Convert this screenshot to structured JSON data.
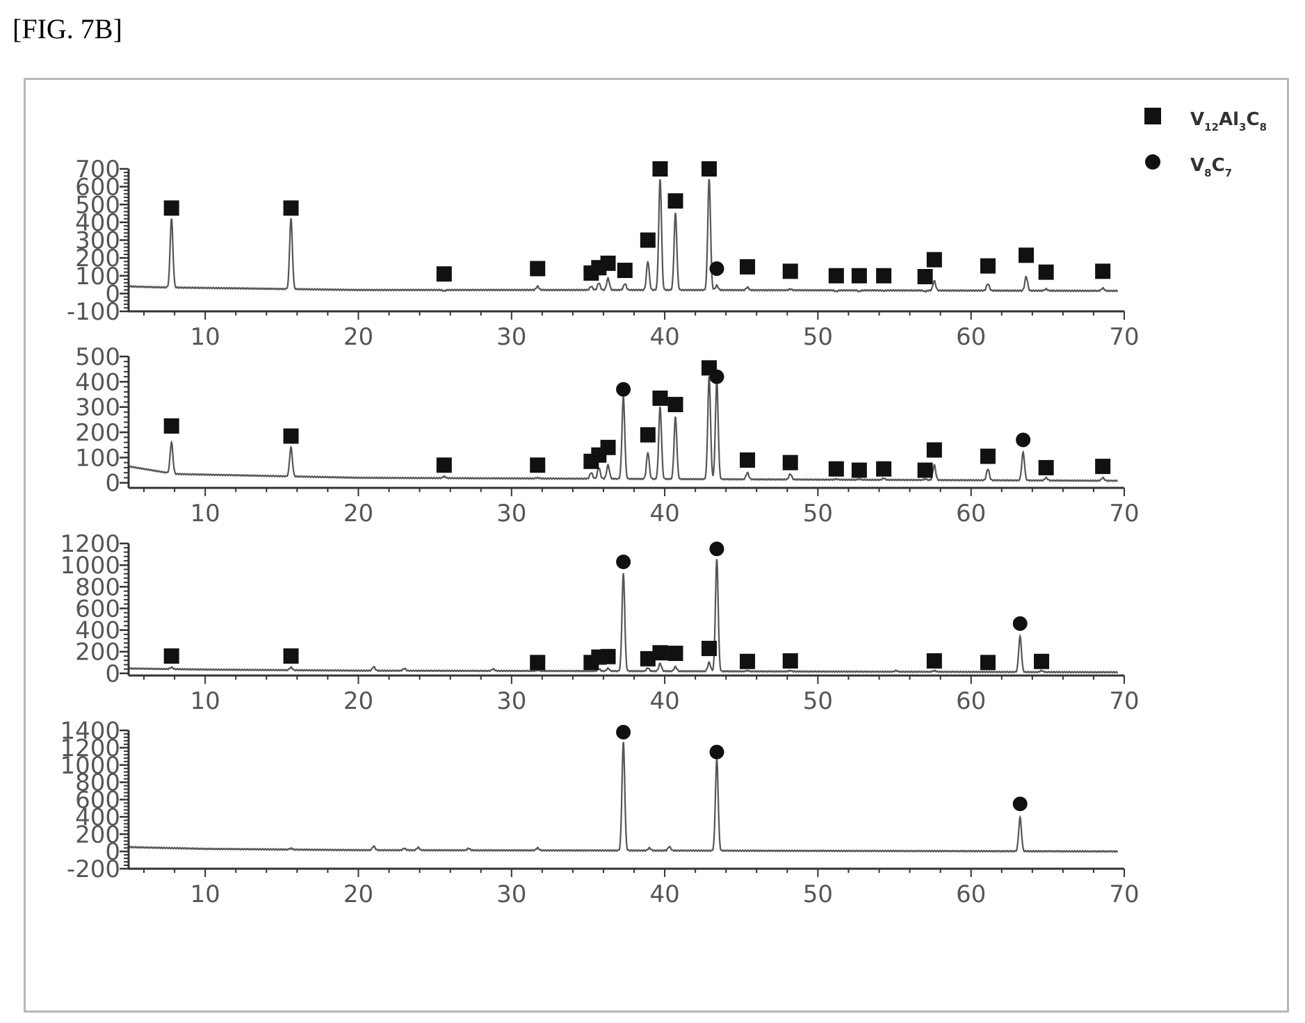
{
  "figure_label": "[FIG. 7B]",
  "colors": {
    "frame": "#b8b8b8",
    "axis": "#333333",
    "trace": "#555555",
    "marker": "#111111"
  },
  "legend": [
    {
      "marker": "square",
      "label": "V",
      "sub1": "12",
      "mid": "Al",
      "sub2": "3",
      "mid2": "C",
      "sub3": "8"
    },
    {
      "marker": "circle",
      "label": "V",
      "sub1": "8",
      "mid": "C",
      "sub2": "7",
      "mid2": "",
      "sub3": ""
    }
  ],
  "chart_data": [
    {
      "type": "line",
      "title": "",
      "xlabel": "",
      "ylabel": "",
      "xlim": [
        5,
        70
      ],
      "ylim": [
        -100,
        700
      ],
      "x_ticks": [
        10,
        20,
        30,
        40,
        50,
        60,
        70
      ],
      "y_ticks": [
        -100,
        0,
        100,
        200,
        300,
        400,
        500,
        600,
        700
      ],
      "y_tick_labels": [
        "-100",
        "0",
        "100",
        "200",
        "300",
        "400",
        "500",
        "600",
        "700"
      ],
      "baseline": [
        [
          5,
          40
        ],
        [
          7,
          35
        ],
        [
          20,
          20
        ],
        [
          40,
          20
        ],
        [
          70,
          15
        ]
      ],
      "peaks": [
        {
          "x": 7.8,
          "y": 420
        },
        {
          "x": 15.6,
          "y": 420
        },
        {
          "x": 25.6,
          "y": 15
        },
        {
          "x": 31.7,
          "y": 40
        },
        {
          "x": 35.2,
          "y": 40
        },
        {
          "x": 35.7,
          "y": 60
        },
        {
          "x": 36.3,
          "y": 85
        },
        {
          "x": 37.4,
          "y": 55
        },
        {
          "x": 38.9,
          "y": 180
        },
        {
          "x": 39.7,
          "y": 640
        },
        {
          "x": 40.7,
          "y": 450
        },
        {
          "x": 42.9,
          "y": 640
        },
        {
          "x": 43.4,
          "y": 45
        },
        {
          "x": 45.4,
          "y": 35
        },
        {
          "x": 48.2,
          "y": 25
        },
        {
          "x": 51.2,
          "y": 12
        },
        {
          "x": 52.7,
          "y": 12
        },
        {
          "x": 54.3,
          "y": 15
        },
        {
          "x": 57.0,
          "y": 12
        },
        {
          "x": 57.6,
          "y": 70
        },
        {
          "x": 61.1,
          "y": 55
        },
        {
          "x": 63.6,
          "y": 95
        },
        {
          "x": 64.9,
          "y": 25
        },
        {
          "x": 68.6,
          "y": 30
        }
      ],
      "markers": [
        {
          "x": 7.8,
          "y": 480,
          "shape": "square"
        },
        {
          "x": 15.6,
          "y": 480,
          "shape": "square"
        },
        {
          "x": 25.6,
          "y": 110,
          "shape": "square"
        },
        {
          "x": 31.7,
          "y": 140,
          "shape": "square"
        },
        {
          "x": 35.2,
          "y": 115,
          "shape": "square"
        },
        {
          "x": 35.7,
          "y": 145,
          "shape": "square"
        },
        {
          "x": 36.3,
          "y": 170,
          "shape": "square"
        },
        {
          "x": 37.4,
          "y": 130,
          "shape": "square"
        },
        {
          "x": 38.9,
          "y": 300,
          "shape": "square"
        },
        {
          "x": 39.7,
          "y": 700,
          "shape": "square"
        },
        {
          "x": 40.7,
          "y": 520,
          "shape": "square"
        },
        {
          "x": 42.9,
          "y": 700,
          "shape": "square"
        },
        {
          "x": 43.4,
          "y": 140,
          "shape": "circle"
        },
        {
          "x": 45.4,
          "y": 150,
          "shape": "square"
        },
        {
          "x": 48.2,
          "y": 125,
          "shape": "square"
        },
        {
          "x": 51.2,
          "y": 100,
          "shape": "square"
        },
        {
          "x": 52.7,
          "y": 100,
          "shape": "square"
        },
        {
          "x": 54.3,
          "y": 100,
          "shape": "square"
        },
        {
          "x": 57.0,
          "y": 95,
          "shape": "square"
        },
        {
          "x": 57.6,
          "y": 190,
          "shape": "square"
        },
        {
          "x": 61.1,
          "y": 155,
          "shape": "square"
        },
        {
          "x": 63.6,
          "y": 215,
          "shape": "square"
        },
        {
          "x": 64.9,
          "y": 120,
          "shape": "square"
        },
        {
          "x": 68.6,
          "y": 125,
          "shape": "square"
        }
      ]
    },
    {
      "type": "line",
      "title": "",
      "xlabel": "",
      "ylabel": "",
      "xlim": [
        5,
        70
      ],
      "ylim": [
        -20,
        500
      ],
      "x_ticks": [
        10,
        20,
        30,
        40,
        50,
        60,
        70
      ],
      "y_ticks": [
        0,
        100,
        200,
        300,
        400,
        500
      ],
      "y_tick_labels": [
        "0",
        "100",
        "200",
        "300",
        "400",
        "500"
      ],
      "baseline": [
        [
          5,
          65
        ],
        [
          6,
          55
        ],
        [
          8,
          35
        ],
        [
          20,
          20
        ],
        [
          40,
          15
        ],
        [
          70,
          8
        ]
      ],
      "peaks": [
        {
          "x": 7.8,
          "y": 160
        },
        {
          "x": 15.6,
          "y": 140
        },
        {
          "x": 25.6,
          "y": 25
        },
        {
          "x": 31.7,
          "y": 20
        },
        {
          "x": 35.2,
          "y": 40
        },
        {
          "x": 35.7,
          "y": 60
        },
        {
          "x": 36.3,
          "y": 70
        },
        {
          "x": 37.3,
          "y": 340
        },
        {
          "x": 38.9,
          "y": 120
        },
        {
          "x": 39.7,
          "y": 300
        },
        {
          "x": 40.7,
          "y": 260
        },
        {
          "x": 42.9,
          "y": 420
        },
        {
          "x": 43.4,
          "y": 400
        },
        {
          "x": 45.4,
          "y": 40
        },
        {
          "x": 48.2,
          "y": 35
        },
        {
          "x": 51.2,
          "y": 15
        },
        {
          "x": 52.7,
          "y": 15
        },
        {
          "x": 54.3,
          "y": 18
        },
        {
          "x": 57.0,
          "y": 15
        },
        {
          "x": 57.6,
          "y": 70
        },
        {
          "x": 61.1,
          "y": 55
        },
        {
          "x": 63.4,
          "y": 120
        },
        {
          "x": 64.9,
          "y": 20
        },
        {
          "x": 68.6,
          "y": 20
        }
      ],
      "markers": [
        {
          "x": 7.8,
          "y": 225,
          "shape": "square"
        },
        {
          "x": 15.6,
          "y": 185,
          "shape": "square"
        },
        {
          "x": 25.6,
          "y": 70,
          "shape": "square"
        },
        {
          "x": 31.7,
          "y": 70,
          "shape": "square"
        },
        {
          "x": 35.2,
          "y": 85,
          "shape": "square"
        },
        {
          "x": 35.7,
          "y": 110,
          "shape": "square"
        },
        {
          "x": 36.3,
          "y": 140,
          "shape": "square"
        },
        {
          "x": 37.3,
          "y": 370,
          "shape": "circle"
        },
        {
          "x": 38.9,
          "y": 190,
          "shape": "square"
        },
        {
          "x": 39.7,
          "y": 335,
          "shape": "square"
        },
        {
          "x": 40.7,
          "y": 310,
          "shape": "square"
        },
        {
          "x": 42.9,
          "y": 455,
          "shape": "square"
        },
        {
          "x": 43.4,
          "y": 420,
          "shape": "circle"
        },
        {
          "x": 45.4,
          "y": 90,
          "shape": "square"
        },
        {
          "x": 48.2,
          "y": 80,
          "shape": "square"
        },
        {
          "x": 51.2,
          "y": 55,
          "shape": "square"
        },
        {
          "x": 52.7,
          "y": 50,
          "shape": "square"
        },
        {
          "x": 54.3,
          "y": 55,
          "shape": "square"
        },
        {
          "x": 57.0,
          "y": 50,
          "shape": "square"
        },
        {
          "x": 57.6,
          "y": 130,
          "shape": "square"
        },
        {
          "x": 61.1,
          "y": 105,
          "shape": "square"
        },
        {
          "x": 63.4,
          "y": 170,
          "shape": "circle"
        },
        {
          "x": 64.9,
          "y": 60,
          "shape": "square"
        },
        {
          "x": 68.6,
          "y": 65,
          "shape": "square"
        }
      ]
    },
    {
      "type": "line",
      "title": "",
      "xlabel": "",
      "ylabel": "",
      "xlim": [
        5,
        70
      ],
      "ylim": [
        -20,
        1200
      ],
      "x_ticks": [
        10,
        20,
        30,
        40,
        50,
        60,
        70
      ],
      "y_ticks": [
        0,
        200,
        400,
        600,
        800,
        1000,
        1200
      ],
      "y_tick_labels": [
        "0",
        "200",
        "400",
        "600",
        "800",
        "1000",
        "1200"
      ],
      "baseline": [
        [
          5,
          45
        ],
        [
          10,
          35
        ],
        [
          20,
          25
        ],
        [
          40,
          20
        ],
        [
          70,
          10
        ]
      ],
      "peaks": [
        {
          "x": 7.8,
          "y": 55
        },
        {
          "x": 15.6,
          "y": 55
        },
        {
          "x": 21.0,
          "y": 60
        },
        {
          "x": 23.0,
          "y": 45
        },
        {
          "x": 28.8,
          "y": 40
        },
        {
          "x": 31.7,
          "y": 30
        },
        {
          "x": 35.7,
          "y": 40
        },
        {
          "x": 36.3,
          "y": 45
        },
        {
          "x": 37.3,
          "y": 920
        },
        {
          "x": 38.9,
          "y": 50
        },
        {
          "x": 39.7,
          "y": 90
        },
        {
          "x": 40.7,
          "y": 60
        },
        {
          "x": 42.9,
          "y": 100
        },
        {
          "x": 43.4,
          "y": 1050
        },
        {
          "x": 45.4,
          "y": 25
        },
        {
          "x": 48.2,
          "y": 25
        },
        {
          "x": 55.1,
          "y": 25
        },
        {
          "x": 57.6,
          "y": 25
        },
        {
          "x": 63.2,
          "y": 340
        },
        {
          "x": 64.6,
          "y": 25
        }
      ],
      "markers": [
        {
          "x": 7.8,
          "y": 160,
          "shape": "square"
        },
        {
          "x": 15.6,
          "y": 160,
          "shape": "square"
        },
        {
          "x": 31.7,
          "y": 100,
          "shape": "square"
        },
        {
          "x": 35.2,
          "y": 100,
          "shape": "square"
        },
        {
          "x": 35.7,
          "y": 150,
          "shape": "square"
        },
        {
          "x": 36.3,
          "y": 155,
          "shape": "square"
        },
        {
          "x": 37.3,
          "y": 1030,
          "shape": "circle"
        },
        {
          "x": 38.9,
          "y": 135,
          "shape": "square"
        },
        {
          "x": 39.7,
          "y": 190,
          "shape": "square"
        },
        {
          "x": 40.7,
          "y": 185,
          "shape": "square"
        },
        {
          "x": 42.9,
          "y": 230,
          "shape": "square"
        },
        {
          "x": 43.4,
          "y": 1150,
          "shape": "circle"
        },
        {
          "x": 45.4,
          "y": 110,
          "shape": "square"
        },
        {
          "x": 48.2,
          "y": 115,
          "shape": "square"
        },
        {
          "x": 57.6,
          "y": 115,
          "shape": "square"
        },
        {
          "x": 61.1,
          "y": 100,
          "shape": "square"
        },
        {
          "x": 63.2,
          "y": 460,
          "shape": "circle"
        },
        {
          "x": 64.6,
          "y": 110,
          "shape": "square"
        }
      ]
    },
    {
      "type": "line",
      "title": "",
      "xlabel": "",
      "ylabel": "",
      "xlim": [
        5,
        70
      ],
      "ylim": [
        -200,
        1400
      ],
      "x_ticks": [
        10,
        20,
        30,
        40,
        50,
        60,
        70
      ],
      "y_ticks": [
        -200,
        0,
        200,
        400,
        600,
        800,
        1000,
        1200,
        1400
      ],
      "y_tick_labels": [
        "-200",
        "0",
        "200",
        "400",
        "600",
        "800",
        "1000",
        "1200",
        "1400"
      ],
      "baseline": [
        [
          5,
          50
        ],
        [
          10,
          30
        ],
        [
          20,
          15
        ],
        [
          40,
          10
        ],
        [
          70,
          0
        ]
      ],
      "peaks": [
        {
          "x": 15.6,
          "y": 35
        },
        {
          "x": 21.0,
          "y": 60
        },
        {
          "x": 23.0,
          "y": 35
        },
        {
          "x": 23.9,
          "y": 45
        },
        {
          "x": 27.2,
          "y": 35
        },
        {
          "x": 31.7,
          "y": 40
        },
        {
          "x": 37.3,
          "y": 1260
        },
        {
          "x": 39.0,
          "y": 40
        },
        {
          "x": 40.3,
          "y": 55
        },
        {
          "x": 43.4,
          "y": 1060
        },
        {
          "x": 63.2,
          "y": 390
        }
      ],
      "markers": [
        {
          "x": 37.3,
          "y": 1380,
          "shape": "circle"
        },
        {
          "x": 43.4,
          "y": 1150,
          "shape": "circle"
        },
        {
          "x": 63.2,
          "y": 550,
          "shape": "circle"
        }
      ]
    }
  ]
}
